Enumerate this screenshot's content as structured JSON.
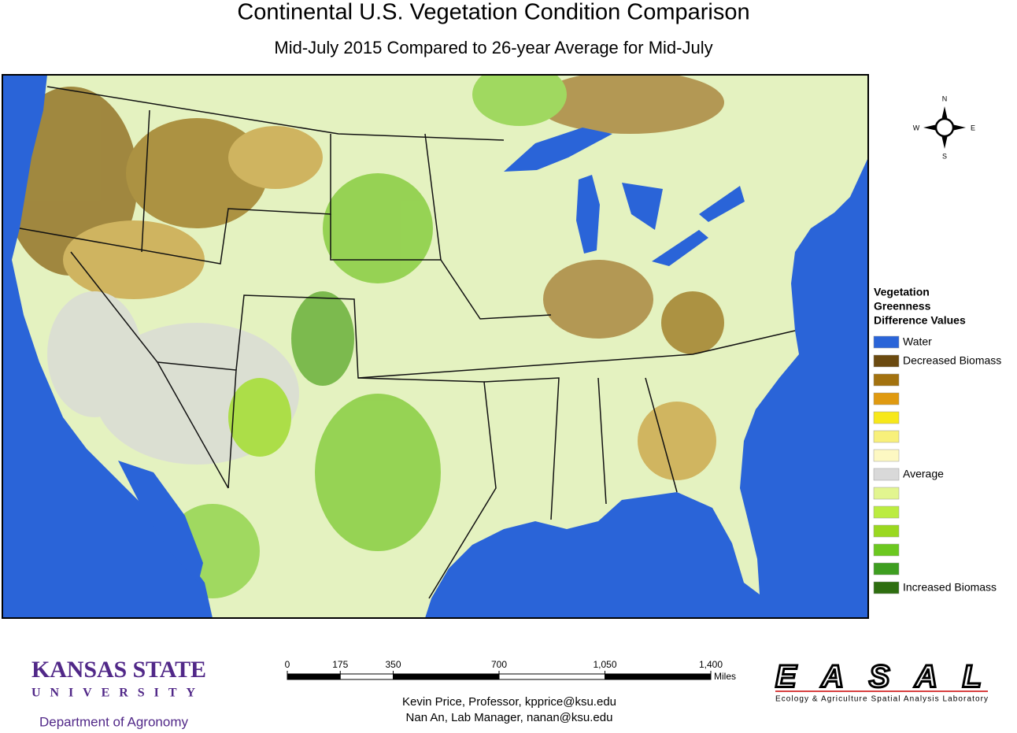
{
  "title": "Continental U.S. Vegetation Condition Comparison",
  "subtitle": "Mid-July 2015 Compared to 26-year Average for Mid-July",
  "compass": {
    "n": "N",
    "s": "S",
    "e": "E",
    "w": "W"
  },
  "legend": {
    "title": [
      "Vegetation",
      "Greenness",
      "Difference Values"
    ],
    "entries": [
      {
        "label": "Water",
        "color": "#2a64d8"
      },
      {
        "label": "Decreased Biomass",
        "color": "#6b4a10"
      },
      {
        "label": null,
        "color": "#a3720f"
      },
      {
        "label": null,
        "color": "#e09a10"
      },
      {
        "label": null,
        "color": "#f7e81a"
      },
      {
        "label": null,
        "color": "#f8f07a"
      },
      {
        "label": null,
        "color": "#fdf8c2"
      },
      {
        "label": "Average",
        "color": "#d9d9d9"
      },
      {
        "label": null,
        "color": "#e2f590"
      },
      {
        "label": null,
        "color": "#bbec40"
      },
      {
        "label": null,
        "color": "#9ad820"
      },
      {
        "label": null,
        "color": "#6cc820"
      },
      {
        "label": null,
        "color": "#3e9e20"
      },
      {
        "label": "Increased Biomass",
        "color": "#2e6e10"
      }
    ]
  },
  "scale_bar": {
    "ticks": [
      0,
      175,
      350,
      700,
      {
        "value": 1050,
        "label": "1,050"
      },
      {
        "value": 1400,
        "label": "1,400"
      }
    ],
    "unit": "Miles"
  },
  "credits": [
    "Kevin Price, Professor, kpprice@ksu.edu",
    "Nan An, Lab Manager, nanan@ksu.edu"
  ],
  "logos": {
    "ksu_name": "KANSAS STATE",
    "ksu_university": "UNIVERSITY",
    "department": "Department of Agronomy",
    "easal": "EASAL",
    "easal_full": "Ecology & Agriculture Spatial Analysis Laboratory"
  }
}
